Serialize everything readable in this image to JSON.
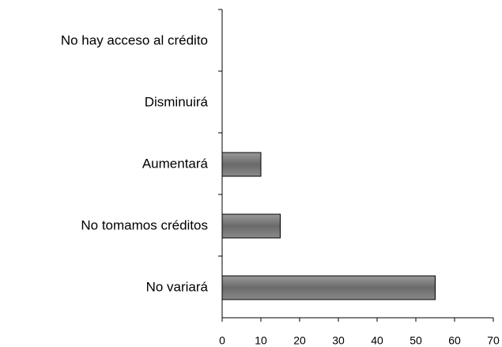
{
  "chart_data": {
    "type": "hbar",
    "categories": [
      "No hay acceso al crédito",
      "Disminuirá",
      "Aumentará",
      "No tomamos créditos",
      "No variará"
    ],
    "values": [
      0,
      0,
      10,
      15,
      55
    ],
    "color": "#7f7f7f",
    "xlim": [
      0,
      70
    ],
    "xticks": [
      0,
      10,
      20,
      30,
      40,
      50,
      60,
      70
    ]
  }
}
